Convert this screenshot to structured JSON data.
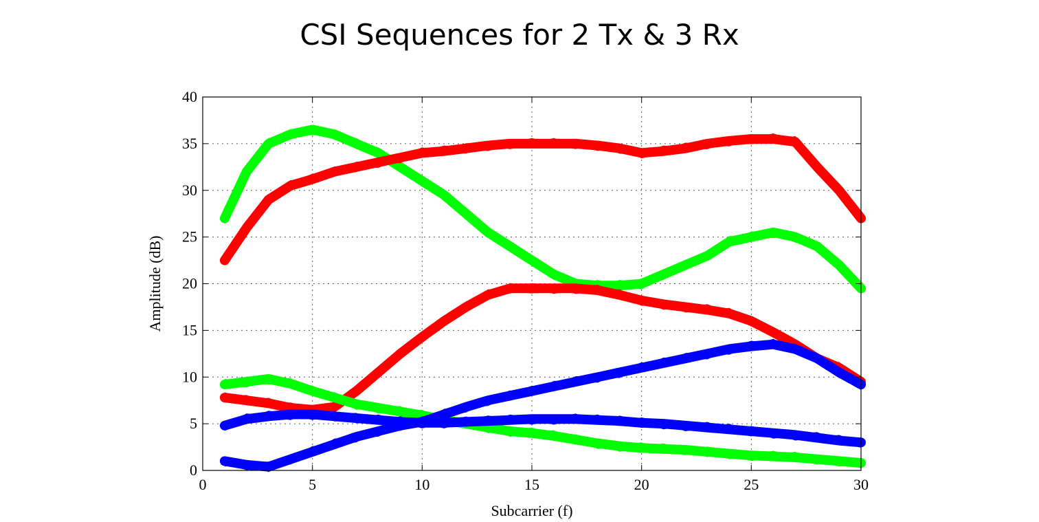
{
  "slide": {
    "title": "CSI Sequences for 2 Tx & 3 Rx"
  },
  "chart_data": {
    "type": "line",
    "title": "",
    "xlabel": "Subcarrier (f)",
    "ylabel": "Amplitude (dB)",
    "xlim": [
      0,
      30
    ],
    "ylim": [
      0,
      40
    ],
    "xticks": [
      0,
      5,
      10,
      15,
      20,
      25,
      30
    ],
    "yticks": [
      0,
      5,
      10,
      15,
      20,
      25,
      30,
      35,
      40
    ],
    "grid": true,
    "x": [
      1,
      2,
      3,
      4,
      5,
      6,
      7,
      8,
      9,
      10,
      11,
      12,
      13,
      14,
      15,
      16,
      17,
      18,
      19,
      20,
      21,
      22,
      23,
      24,
      25,
      26,
      27,
      28,
      29,
      30
    ],
    "series": [
      {
        "color": "#00ff00",
        "values": [
          27,
          32,
          35,
          36,
          36.5,
          36,
          35,
          34,
          32.5,
          31,
          29.5,
          27.5,
          25.5,
          24,
          22.5,
          21,
          20,
          19.8,
          19.8,
          20,
          21,
          22,
          23,
          24.5,
          25,
          25.5,
          25,
          24,
          22,
          19.5
        ]
      },
      {
        "color": "#ff0000",
        "values": [
          22.5,
          26,
          29,
          30.5,
          31.2,
          32,
          32.5,
          33,
          33.5,
          34,
          34.2,
          34.5,
          34.8,
          35,
          35,
          35,
          35,
          34.8,
          34.5,
          34,
          34.2,
          34.5,
          35,
          35.3,
          35.5,
          35.5,
          35.2,
          32.5,
          30,
          27
        ]
      },
      {
        "color": "#ff0000",
        "values": [
          7.8,
          7.5,
          7.2,
          6.7,
          6.5,
          6.8,
          8.5,
          10.5,
          12.5,
          14.3,
          16,
          17.5,
          18.8,
          19.5,
          19.5,
          19.5,
          19.5,
          19.3,
          18.8,
          18.2,
          17.8,
          17.5,
          17.2,
          16.8,
          16,
          14.8,
          13.5,
          12,
          11,
          9.5
        ]
      },
      {
        "color": "#00ff00",
        "values": [
          9.2,
          9.5,
          9.8,
          9.3,
          8.5,
          7.8,
          7.1,
          6.7,
          6.3,
          5.9,
          5.4,
          5,
          4.6,
          4.2,
          4,
          3.7,
          3.3,
          2.9,
          2.6,
          2.4,
          2.3,
          2.2,
          2,
          1.8,
          1.6,
          1.5,
          1.4,
          1.2,
          1,
          0.8
        ]
      },
      {
        "color": "#0000ff",
        "values": [
          4.8,
          5.5,
          5.8,
          6,
          6,
          5.8,
          5.6,
          5.4,
          5.2,
          5.1,
          5.1,
          5.2,
          5.3,
          5.4,
          5.5,
          5.5,
          5.5,
          5.4,
          5.3,
          5.1,
          5,
          4.8,
          4.6,
          4.4,
          4.2,
          4,
          3.8,
          3.5,
          3.2,
          3
        ]
      },
      {
        "color": "#0000ff",
        "values": [
          1,
          0.6,
          0.4,
          1.2,
          2,
          2.8,
          3.6,
          4.2,
          4.8,
          5.2,
          6,
          6.8,
          7.5,
          8,
          8.5,
          9,
          9.5,
          10,
          10.5,
          11,
          11.5,
          12,
          12.5,
          13,
          13.3,
          13.5,
          13,
          12,
          10.5,
          9.2
        ]
      }
    ]
  }
}
